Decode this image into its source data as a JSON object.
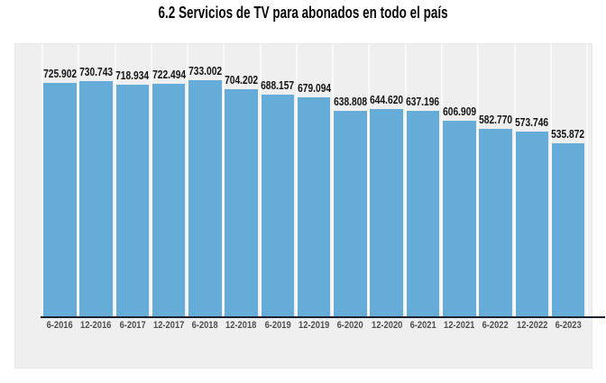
{
  "title": "6.2 Servicios de TV para abonados en todo el país",
  "chart_data": {
    "type": "bar",
    "title": "6.2 Servicios de TV para abonados en todo el país",
    "categories": [
      "6-2016",
      "12-2016",
      "6-2017",
      "12-2017",
      "6-2018",
      "12-2018",
      "6-2019",
      "12-2019",
      "6-2020",
      "12-2020",
      "6-2021",
      "12-2021",
      "6-2022",
      "12-2022",
      "6-2023"
    ],
    "values": [
      725902,
      730743,
      718934,
      722494,
      733002,
      704202,
      688157,
      679094,
      638808,
      644620,
      637196,
      606909,
      582770,
      573746,
      535872
    ],
    "value_labels": [
      "725.902",
      "730.743",
      "718.934",
      "722.494",
      "733.002",
      "704.202",
      "688.157",
      "679.094",
      "638.808",
      "644.620",
      "637.196",
      "606.909",
      "582.770",
      "573.746",
      "535.872"
    ],
    "xlabel": "",
    "ylabel": "",
    "ylim": [
      0,
      733002
    ],
    "legend": "none",
    "grid": "faint-vertical",
    "bar_color": "#66acd9",
    "panel_bg": "#efefef",
    "axis_line_color": "#1c2230",
    "value_label_color": "#141414",
    "tick_label_color": "#4d4d4d"
  }
}
